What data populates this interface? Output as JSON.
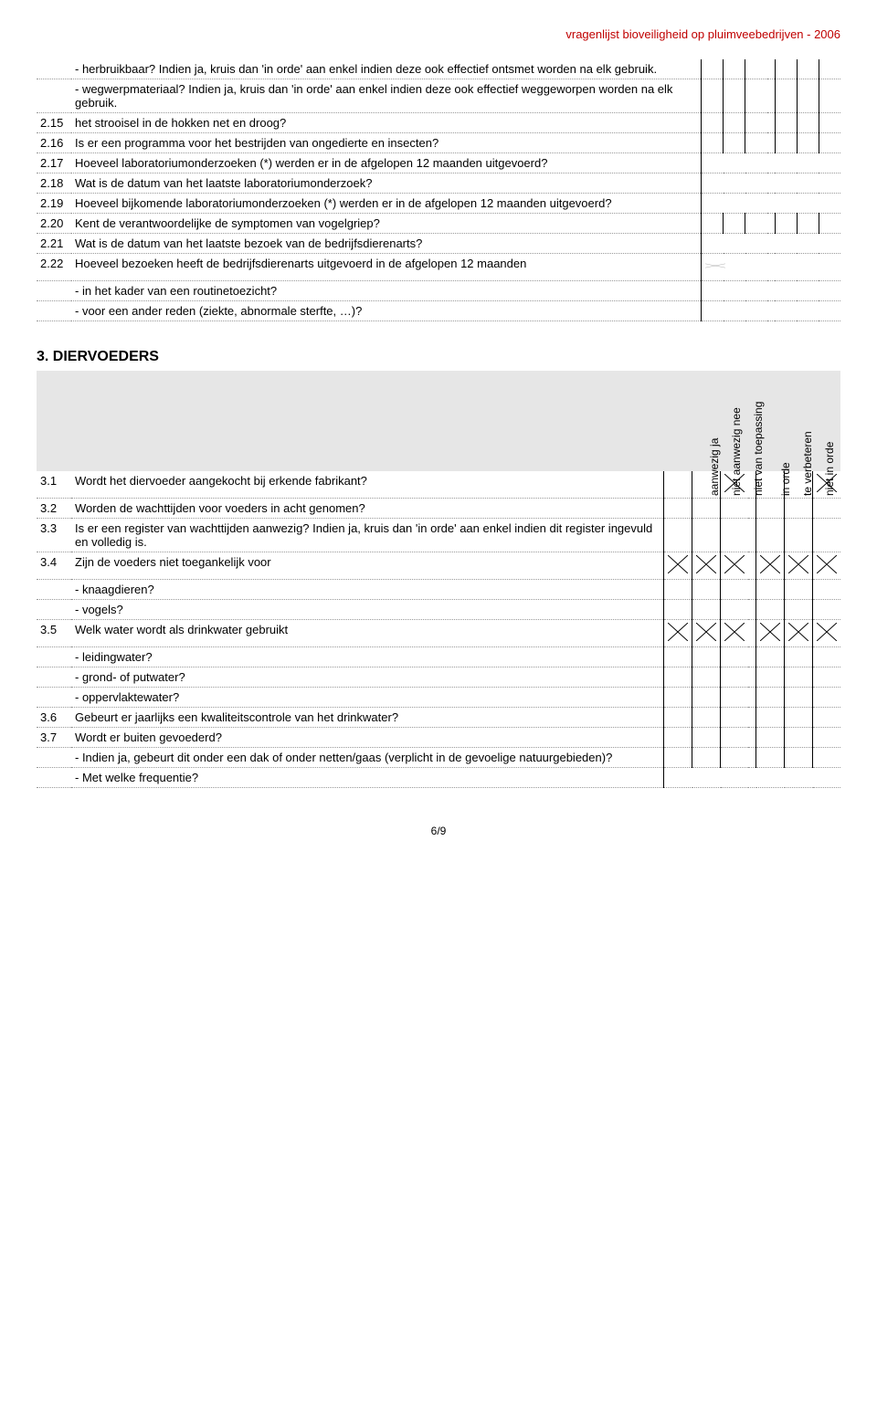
{
  "header": {
    "title": "vragenlijst bioveiligheid op pluimveebedrijven  -  2006"
  },
  "section2": {
    "rows": [
      {
        "num": "",
        "text": "- herbruikbaar? Indien ja, kruis dan 'in orde' aan enkel indien deze ook effectief ontsmet worden na elk gebruik.",
        "type": "six",
        "dotted": true
      },
      {
        "num": "",
        "text": "- wegwerpmateriaal? Indien ja, kruis dan 'in orde' aan enkel indien deze ook effectief weggeworpen worden na elk gebruik.",
        "type": "six",
        "dotted": true
      },
      {
        "num": "2.15",
        "text": "het strooisel in de hokken net en droog?",
        "type": "six",
        "dotted": true
      },
      {
        "num": "2.16",
        "text": "Is er een programma voor het bestrijden van ongedierte en insecten?",
        "type": "six",
        "dotted": true
      },
      {
        "num": "2.17",
        "text": "Hoeveel laboratoriumonderzoeken (*) werden er in de afgelopen 12 maanden uitgevoerd?",
        "type": "wide",
        "dotted": true
      },
      {
        "num": "2.18",
        "text": "Wat is de datum van het laatste laboratoriumonderzoek?",
        "type": "wide",
        "dotted": true
      },
      {
        "num": "2.19",
        "text": "Hoeveel bijkomende laboratoriumonderzoeken (*) werden er in de afgelopen 12 maanden uitgevoerd?",
        "type": "wide",
        "dotted": true
      },
      {
        "num": "2.20",
        "text": "Kent de verantwoordelijke de symptomen van vogelgriep?",
        "type": "six",
        "dotted": true
      },
      {
        "num": "2.21",
        "text": "Wat is de datum van het laatste bezoek van de bedrijfsdierenarts?",
        "type": "wide",
        "dotted": true
      },
      {
        "num": "2.22",
        "text": "Hoeveel bezoeken heeft de bedrijfsdierenarts uitgevoerd in de afgelopen 12 maanden",
        "type": "wide-x",
        "dotted": true
      },
      {
        "num": "",
        "text": "- in het kader van een routinetoezicht?",
        "type": "wide",
        "dotted": true,
        "sub": true
      },
      {
        "num": "",
        "text": "- voor een ander reden (ziekte, abnormale sterfte, …)?",
        "type": "wide",
        "dotted": true,
        "sub": true
      }
    ]
  },
  "section3": {
    "title": "3.  DIERVOEDERS",
    "headers": [
      "aanwezig ja",
      "niet aanwezig nee",
      "niet van toepassing",
      "in orde",
      "te verbeteren",
      "niet in orde"
    ],
    "rows": [
      {
        "num": "3.1",
        "text": "Wordt het diervoeder aangekocht bij erkende fabrikant?",
        "type": "six",
        "x": [
          false,
          false,
          true,
          false,
          false,
          true
        ],
        "dotted": true
      },
      {
        "num": "3.2",
        "text": "Worden de wachttijden voor voeders in acht genomen?",
        "type": "six",
        "dotted": true
      },
      {
        "num": "3.3",
        "text": "Is er een register van wachttijden aanwezig? Indien ja, kruis dan 'in orde' aan enkel indien dit register ingevuld en volledig is.",
        "type": "six",
        "dotted": true
      },
      {
        "num": "3.4",
        "text": "Zijn de voeders niet toegankelijk voor",
        "type": "six",
        "x": [
          true,
          true,
          true,
          true,
          true,
          true
        ],
        "dotted": true
      },
      {
        "num": "",
        "text": "- knaagdieren?",
        "type": "six",
        "dotted": true,
        "sub": true
      },
      {
        "num": "",
        "text": "- vogels?",
        "type": "six",
        "dotted": true,
        "sub": true
      },
      {
        "num": "3.5",
        "text": "Welk water wordt als drinkwater gebruikt",
        "type": "six",
        "x": [
          true,
          true,
          true,
          true,
          true,
          true
        ],
        "dotted": true
      },
      {
        "num": "",
        "text": "- leidingwater?",
        "type": "six",
        "dotted": true,
        "sub": true
      },
      {
        "num": "",
        "text": "- grond- of putwater?",
        "type": "six",
        "dotted": true,
        "sub": true
      },
      {
        "num": "",
        "text": "- oppervlaktewater?",
        "type": "six",
        "dotted": true,
        "sub": true
      },
      {
        "num": "3.6",
        "text": "Gebeurt er jaarlijks een kwaliteitscontrole van het drinkwater?",
        "type": "six",
        "dotted": true
      },
      {
        "num": "3.7",
        "text": "Wordt er buiten gevoederd?",
        "type": "six",
        "dotted": true
      },
      {
        "num": "",
        "text": "- Indien ja, gebeurt dit onder een dak of onder netten/gaas (verplicht in de gevoelige natuurgebieden)?",
        "type": "six",
        "dotted": true,
        "sub": true
      },
      {
        "num": "",
        "text": "- Met welke frequentie?",
        "type": "wide",
        "dotted": true,
        "sub": true
      }
    ]
  },
  "footer": {
    "page": "6/9"
  }
}
